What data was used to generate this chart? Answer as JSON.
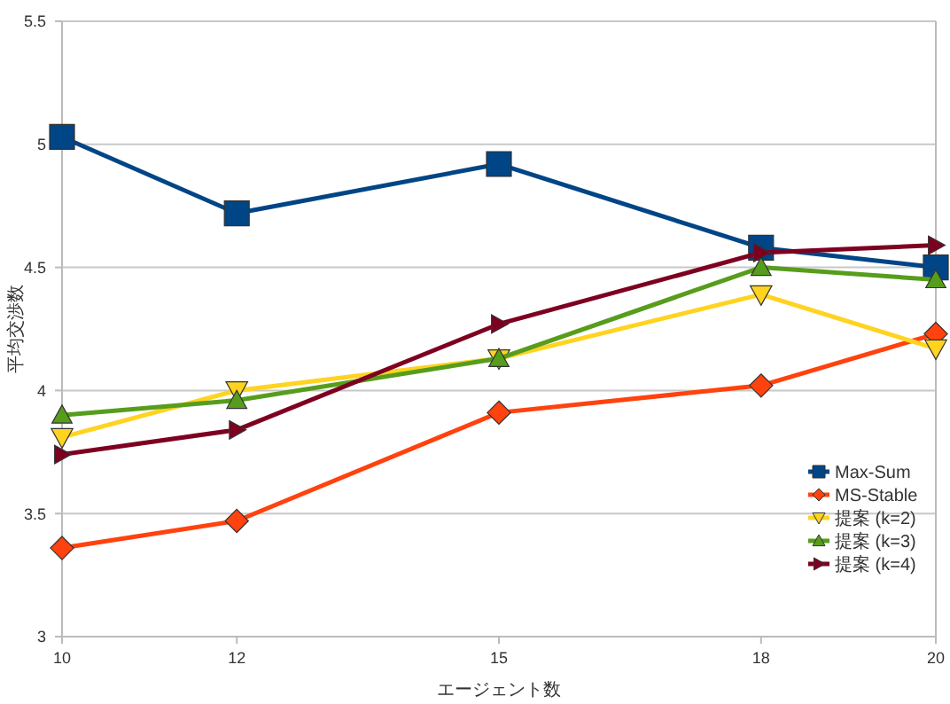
{
  "chart_data": {
    "type": "line",
    "xlabel": "エージェント数",
    "ylabel": "平均交渉数",
    "x": [
      10,
      12,
      15,
      18,
      20
    ],
    "xlim": [
      10,
      20
    ],
    "xticks": [
      10,
      12,
      15,
      18,
      20
    ],
    "ylim": [
      3,
      5.5
    ],
    "yticks": [
      3,
      3.5,
      4,
      4.5,
      5,
      5.5
    ],
    "grid": "y",
    "legend": "right",
    "series": [
      {
        "name": "Max-Sum",
        "color": "#004586",
        "marker": "square",
        "values": [
          5.03,
          4.72,
          4.92,
          4.58,
          4.5
        ]
      },
      {
        "name": "MS-Stable",
        "color": "#ff420e",
        "marker": "diamond",
        "values": [
          3.36,
          3.47,
          3.91,
          4.02,
          4.23
        ]
      },
      {
        "name": "提案 (k=2)",
        "color": "#ffd320",
        "marker": "triangle-down",
        "values": [
          3.81,
          4.0,
          4.13,
          4.39,
          4.17
        ]
      },
      {
        "name": "提案 (k=3)",
        "color": "#579d1c",
        "marker": "triangle",
        "values": [
          3.9,
          3.96,
          4.13,
          4.5,
          4.45
        ]
      },
      {
        "name": "提案 (k=4)",
        "color": "#7e0021",
        "marker": "triangle-right",
        "values": [
          3.74,
          3.84,
          4.27,
          4.56,
          4.59
        ]
      }
    ]
  }
}
